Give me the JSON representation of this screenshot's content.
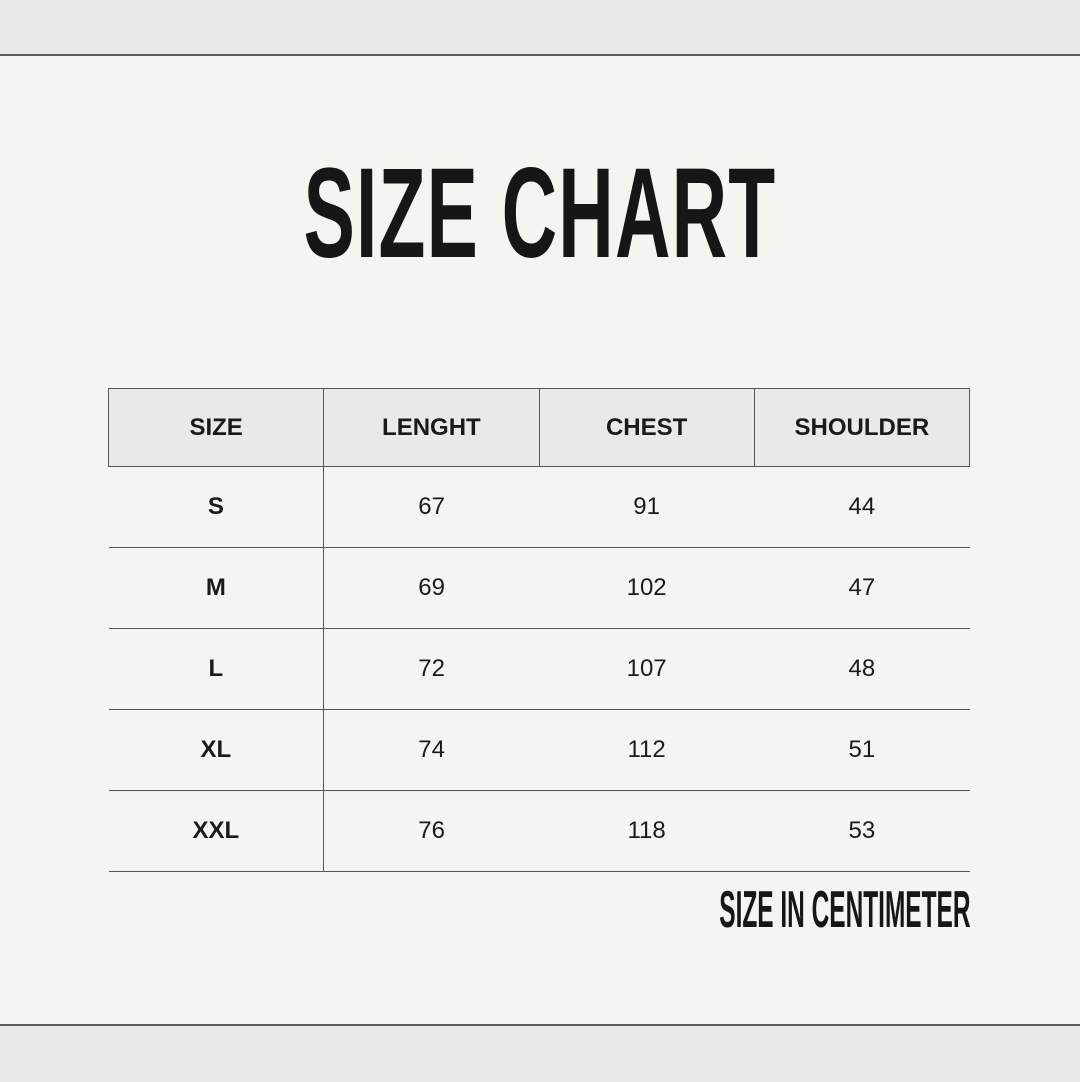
{
  "title": "SIZE CHART",
  "table": {
    "headers": [
      "SIZE",
      "LENGHT",
      "CHEST",
      "SHOULDER"
    ],
    "rows": [
      [
        "S",
        "67",
        "91",
        "44"
      ],
      [
        "M",
        "69",
        "102",
        "47"
      ],
      [
        "L",
        "72",
        "107",
        "48"
      ],
      [
        "XL",
        "74",
        "112",
        "51"
      ],
      [
        "XXL",
        "76",
        "118",
        "53"
      ]
    ]
  },
  "note": "SIZE IN CENTIMETER",
  "colors": {
    "background": "#f4f4f0",
    "header_fill": "#e9e9e5",
    "text": "#161616"
  }
}
